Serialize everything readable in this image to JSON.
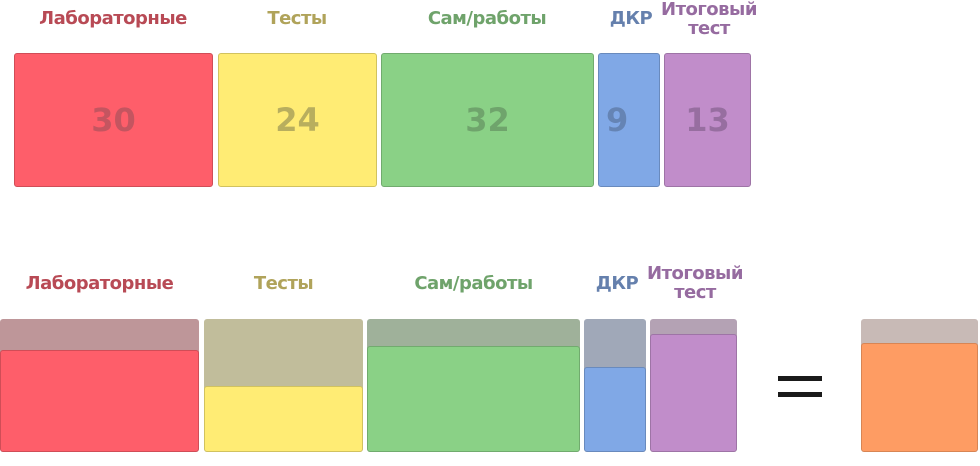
{
  "top_row": {
    "items": [
      {
        "label": "Лабораторные",
        "value": "30",
        "color": "#fe5e6a",
        "label_color": "#b84a55",
        "value_color": "#c45560"
      },
      {
        "label": "Тесты",
        "value": "24",
        "color": "#ffec74",
        "label_color": "#b0a35a",
        "value_color": "#b8ae5e"
      },
      {
        "label": "Сам/работы",
        "value": "32",
        "color": "#8ad186",
        "label_color": "#6fa36b",
        "value_color": "#6fa46c"
      },
      {
        "label": "ДКР",
        "value": "9",
        "color": "#80a8e6",
        "label_color": "#6580ad",
        "value_color": "#6584b4"
      },
      {
        "label": "Итоговый тест",
        "value": "13",
        "color": "#c18dca",
        "label_color": "#966ba0",
        "value_color": "#976ea0"
      }
    ]
  },
  "bottom_row": {
    "items": [
      {
        "label": "Лабораторные",
        "fill_fraction": 0.77,
        "color": "#fe5e6a",
        "track_color": "#be9699",
        "label_color": "#b84a55"
      },
      {
        "label": "Тесты",
        "fill_fraction": 0.5,
        "color": "#ffec74",
        "track_color": "#c1bd9b",
        "label_color": "#b0a35a"
      },
      {
        "label": "Сам/работы",
        "fill_fraction": 0.8,
        "color": "#8ad186",
        "track_color": "#9fb19a",
        "label_color": "#6fa36b"
      },
      {
        "label": "ДКР",
        "fill_fraction": 0.64,
        "color": "#80a8e6",
        "track_color": "#a0a8b8",
        "label_color": "#6580ad"
      },
      {
        "label": "Итоговый тест",
        "fill_fraction": 0.89,
        "color": "#c18dca",
        "track_color": "#b4a2b4",
        "label_color": "#966ba0"
      }
    ],
    "equals_sign": "=",
    "result": {
      "fill_fraction": 0.82,
      "color": "#fe9c63",
      "track_color": "#c8bab6"
    }
  }
}
